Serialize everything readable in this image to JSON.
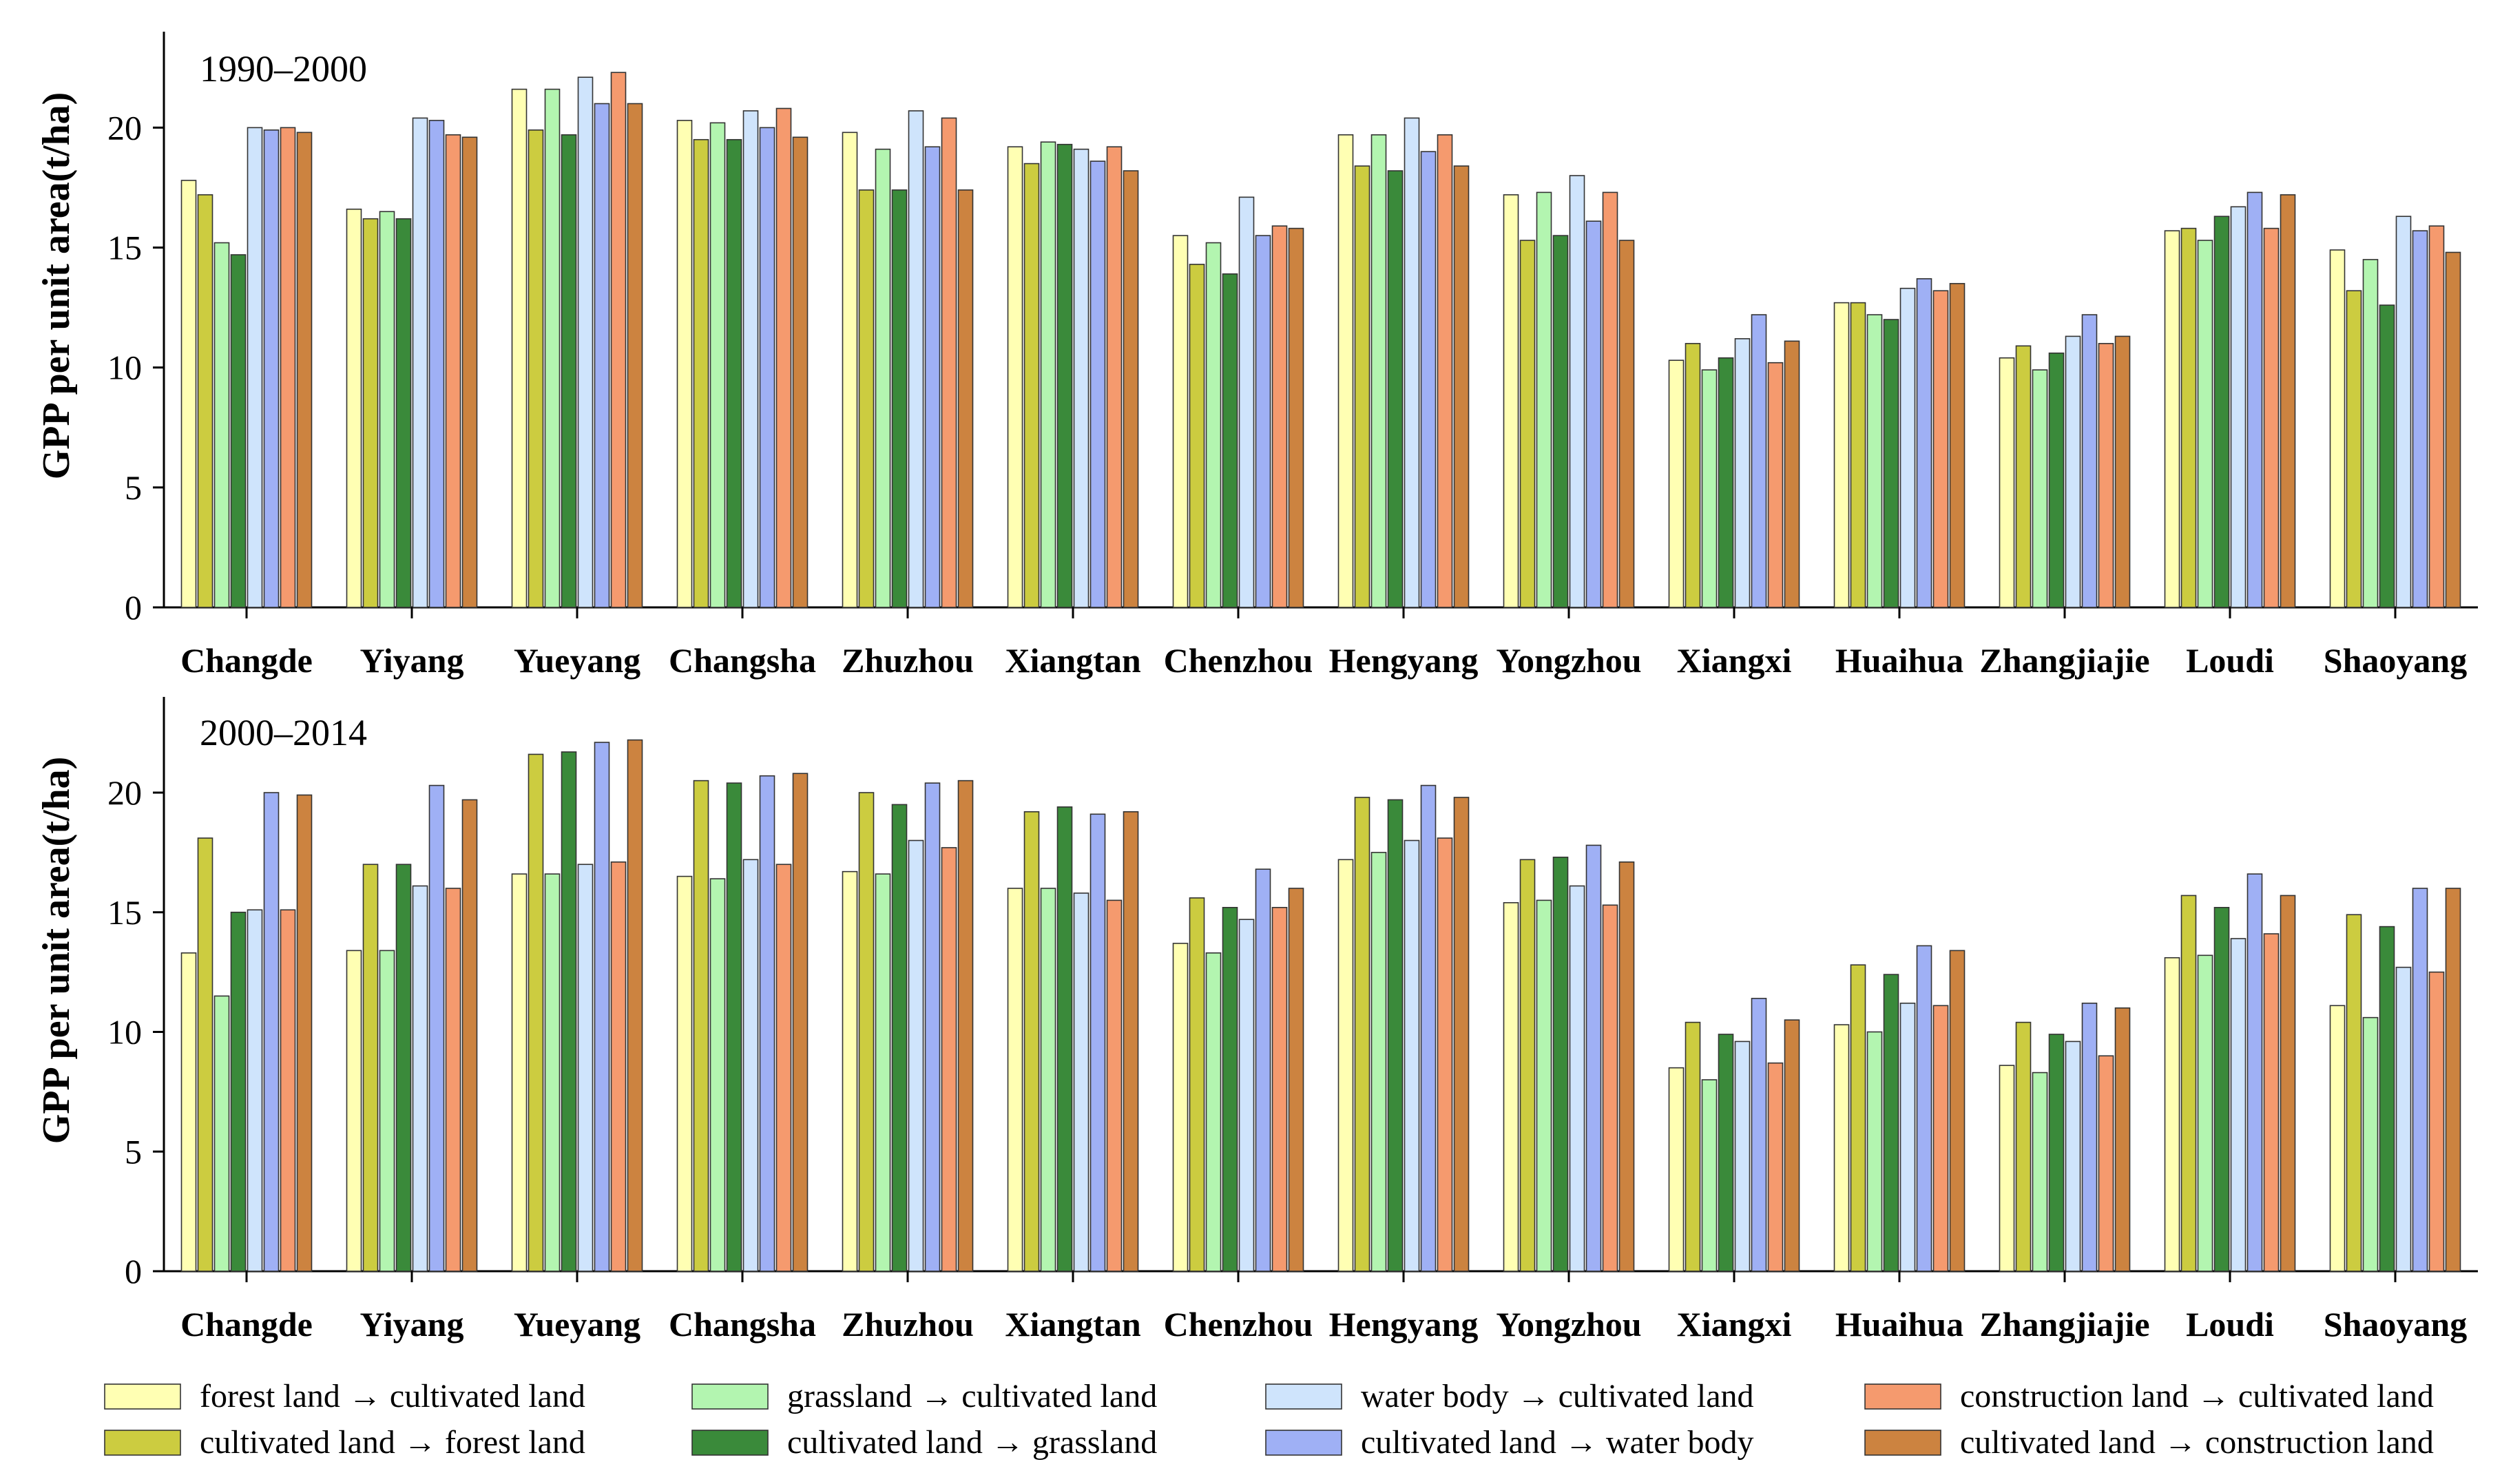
{
  "chart_data": [
    {
      "type": "bar",
      "title": "1990–2000",
      "xlabel": "",
      "ylabel": "GPP per unit area(t/ha)",
      "ylim": [
        0,
        24
      ],
      "yticks": [
        0,
        5,
        10,
        15,
        20
      ],
      "categories": [
        "Changde",
        "Yiyang",
        "Yueyang",
        "Changsha",
        "Zhuzhou",
        "Xiangtan",
        "Chenzhou",
        "Hengyang",
        "Yongzhou",
        "Xiangxi",
        "Huaihua",
        "Zhangjiajie",
        "Loudi",
        "Shaoyang"
      ],
      "series": [
        {
          "name": "forest land → cultivated land",
          "color": "#FFFFB3",
          "values": [
            17.8,
            16.6,
            21.6,
            20.3,
            19.8,
            19.2,
            15.5,
            19.7,
            17.2,
            10.3,
            12.7,
            10.4,
            15.7,
            14.9
          ]
        },
        {
          "name": "cultivated land → forest land",
          "color": "#CCCC40",
          "values": [
            17.2,
            16.2,
            19.9,
            19.5,
            17.4,
            18.5,
            14.3,
            18.4,
            15.3,
            11.0,
            12.7,
            10.9,
            15.8,
            13.2
          ]
        },
        {
          "name": "grassland → cultivated land",
          "color": "#B3F5B0",
          "values": [
            15.2,
            16.5,
            21.6,
            20.2,
            19.1,
            19.4,
            15.2,
            19.7,
            17.3,
            9.9,
            12.2,
            9.9,
            15.3,
            14.5
          ]
        },
        {
          "name": "cultivated land → grassland",
          "color": "#3A8A3A",
          "values": [
            14.7,
            16.2,
            19.7,
            19.5,
            17.4,
            19.3,
            13.9,
            18.2,
            15.5,
            10.4,
            12.0,
            10.6,
            16.3,
            12.6
          ]
        },
        {
          "name": "water body → cultivated land",
          "color": "#CFE4FC",
          "values": [
            20.0,
            20.4,
            22.1,
            20.7,
            20.7,
            19.1,
            17.1,
            20.4,
            18.0,
            11.2,
            13.3,
            11.3,
            16.7,
            16.3
          ]
        },
        {
          "name": "cultivated land → water body",
          "color": "#9FB0F5",
          "values": [
            19.9,
            20.3,
            21.0,
            20.0,
            19.2,
            18.6,
            15.5,
            19.0,
            16.1,
            12.2,
            13.7,
            12.2,
            17.3,
            15.7
          ]
        },
        {
          "name": "construction land → cultivated land",
          "color": "#F59A6E",
          "values": [
            20.0,
            19.7,
            22.3,
            20.8,
            20.4,
            19.2,
            15.9,
            19.7,
            17.3,
            10.2,
            13.2,
            11.0,
            15.8,
            15.9
          ]
        },
        {
          "name": "cultivated land → construction land",
          "color": "#CC8340",
          "values": [
            19.8,
            19.6,
            21.0,
            19.6,
            17.4,
            18.2,
            15.8,
            18.4,
            15.3,
            11.1,
            13.5,
            11.3,
            17.2,
            14.8
          ]
        }
      ]
    },
    {
      "type": "bar",
      "title": "2000–2014",
      "xlabel": "",
      "ylabel": "GPP per unit area(t/ha)",
      "ylim": [
        0,
        24
      ],
      "yticks": [
        0,
        5,
        10,
        15,
        20
      ],
      "categories": [
        "Changde",
        "Yiyang",
        "Yueyang",
        "Changsha",
        "Zhuzhou",
        "Xiangtan",
        "Chenzhou",
        "Hengyang",
        "Yongzhou",
        "Xiangxi",
        "Huaihua",
        "Zhangjiajie",
        "Loudi",
        "Shaoyang"
      ],
      "series": [
        {
          "name": "forest land → cultivated land",
          "color": "#FFFFB3",
          "values": [
            13.3,
            13.4,
            16.6,
            16.5,
            16.7,
            16.0,
            13.7,
            17.2,
            15.4,
            8.5,
            10.3,
            8.6,
            13.1,
            11.1
          ]
        },
        {
          "name": "cultivated land → forest land",
          "color": "#CCCC40",
          "values": [
            18.1,
            17.0,
            21.6,
            20.5,
            20.0,
            19.2,
            15.6,
            19.8,
            17.2,
            10.4,
            12.8,
            10.4,
            15.7,
            14.9
          ]
        },
        {
          "name": "grassland → cultivated land",
          "color": "#B3F5B0",
          "values": [
            11.5,
            13.4,
            16.6,
            16.4,
            16.6,
            16.0,
            13.3,
            17.5,
            15.5,
            8.0,
            10.0,
            8.3,
            13.2,
            10.6
          ]
        },
        {
          "name": "cultivated land → grassland",
          "color": "#3A8A3A",
          "values": [
            15.0,
            17.0,
            21.7,
            20.4,
            19.5,
            19.4,
            15.2,
            19.7,
            17.3,
            9.9,
            12.4,
            9.9,
            15.2,
            14.4
          ]
        },
        {
          "name": "water body → cultivated land",
          "color": "#CFE4FC",
          "values": [
            15.1,
            16.1,
            17.0,
            17.2,
            18.0,
            15.8,
            14.7,
            18.0,
            16.1,
            9.6,
            11.2,
            9.6,
            13.9,
            12.7
          ]
        },
        {
          "name": "cultivated land → water body",
          "color": "#9FB0F5",
          "values": [
            20.0,
            20.3,
            22.1,
            20.7,
            20.4,
            19.1,
            16.8,
            20.3,
            17.8,
            11.4,
            13.6,
            11.2,
            16.6,
            16.0
          ]
        },
        {
          "name": "construction land → cultivated land",
          "color": "#F59A6E",
          "values": [
            15.1,
            16.0,
            17.1,
            17.0,
            17.7,
            15.5,
            15.2,
            18.1,
            15.3,
            8.7,
            11.1,
            9.0,
            14.1,
            12.5
          ]
        },
        {
          "name": "cultivated land → construction land",
          "color": "#CC8340",
          "values": [
            19.9,
            19.7,
            22.2,
            20.8,
            20.5,
            19.2,
            16.0,
            19.8,
            17.1,
            10.5,
            13.4,
            11.0,
            15.7,
            16.0
          ]
        }
      ]
    }
  ],
  "legend": {
    "items": [
      {
        "label": "forest land → cultivated land",
        "color": "#FFFFB3"
      },
      {
        "label": "grassland → cultivated land",
        "color": "#B3F5B0"
      },
      {
        "label": "water body → cultivated land",
        "color": "#CFE4FC"
      },
      {
        "label": "construction land → cultivated land",
        "color": "#F59A6E"
      },
      {
        "label": "cultivated land → forest land",
        "color": "#CCCC40"
      },
      {
        "label": "cultivated land → grassland",
        "color": "#3A8A3A"
      },
      {
        "label": "cultivated land → water body",
        "color": "#9FB0F5"
      },
      {
        "label": "cultivated land → construction land",
        "color": "#CC8340"
      }
    ]
  }
}
